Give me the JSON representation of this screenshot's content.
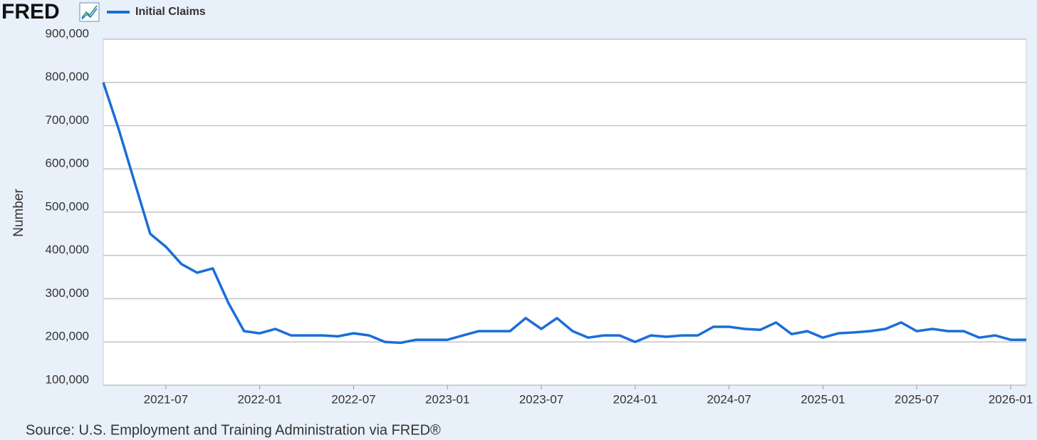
{
  "chart_data": {
    "type": "line",
    "brand": "FRED",
    "ylabel": "Number",
    "source": "Source: U.S. Employment and Training Administration via FRED®",
    "x": [
      "2021-03",
      "2021-04",
      "2021-05",
      "2021-06",
      "2021-07",
      "2021-08",
      "2021-09",
      "2021-10",
      "2021-11",
      "2021-12",
      "2022-01",
      "2022-02",
      "2022-03",
      "2022-04",
      "2022-05",
      "2022-06",
      "2022-07",
      "2022-08",
      "2022-09",
      "2022-10",
      "2022-11",
      "2022-12",
      "2023-01",
      "2023-02",
      "2023-03",
      "2023-04",
      "2023-05",
      "2023-06",
      "2023-07",
      "2023-08",
      "2023-09",
      "2023-10",
      "2023-11",
      "2023-12",
      "2024-01",
      "2024-02",
      "2024-03",
      "2024-04",
      "2024-05",
      "2024-06",
      "2024-07",
      "2024-08",
      "2024-09",
      "2024-10",
      "2024-11",
      "2024-12",
      "2025-01",
      "2025-02",
      "2025-03",
      "2025-04",
      "2025-05",
      "2025-06",
      "2025-07",
      "2025-08",
      "2025-09",
      "2025-10",
      "2025-11",
      "2025-12",
      "2026-01",
      "2026-02"
    ],
    "series": [
      {
        "name": "Initial Claims",
        "color": "#1a6ed8",
        "values": [
          800000,
          690000,
          570000,
          450000,
          420000,
          380000,
          360000,
          370000,
          290000,
          225000,
          220000,
          230000,
          215000,
          215000,
          215000,
          213000,
          220000,
          215000,
          200000,
          198000,
          205000,
          205000,
          205000,
          215000,
          225000,
          225000,
          225000,
          255000,
          230000,
          255000,
          225000,
          210000,
          215000,
          215000,
          200000,
          215000,
          212000,
          215000,
          215000,
          235000,
          235000,
          230000,
          228000,
          245000,
          218000,
          225000,
          210000,
          220000,
          222000,
          225000,
          230000,
          245000,
          225000,
          230000,
          225000,
          225000,
          210000,
          215000,
          205000,
          205000
        ]
      }
    ],
    "xlim": [
      "2021-03",
      "2026-02"
    ],
    "xticks": [
      "2021-07",
      "2022-01",
      "2022-07",
      "2023-01",
      "2023-07",
      "2024-01",
      "2024-07",
      "2025-01",
      "2025-07",
      "2026-01"
    ],
    "ylim": [
      100000,
      900000
    ],
    "yticks": [
      {
        "value": 100000,
        "label": "100,000"
      },
      {
        "value": 200000,
        "label": "200,000"
      },
      {
        "value": 300000,
        "label": "300,000"
      },
      {
        "value": 400000,
        "label": "400,000"
      },
      {
        "value": 500000,
        "label": "500,000"
      },
      {
        "value": 600000,
        "label": "600,000"
      },
      {
        "value": 700000,
        "label": "700,000"
      },
      {
        "value": 800000,
        "label": "800,000"
      },
      {
        "value": 900000,
        "label": "900,000"
      }
    ],
    "grid": true
  }
}
